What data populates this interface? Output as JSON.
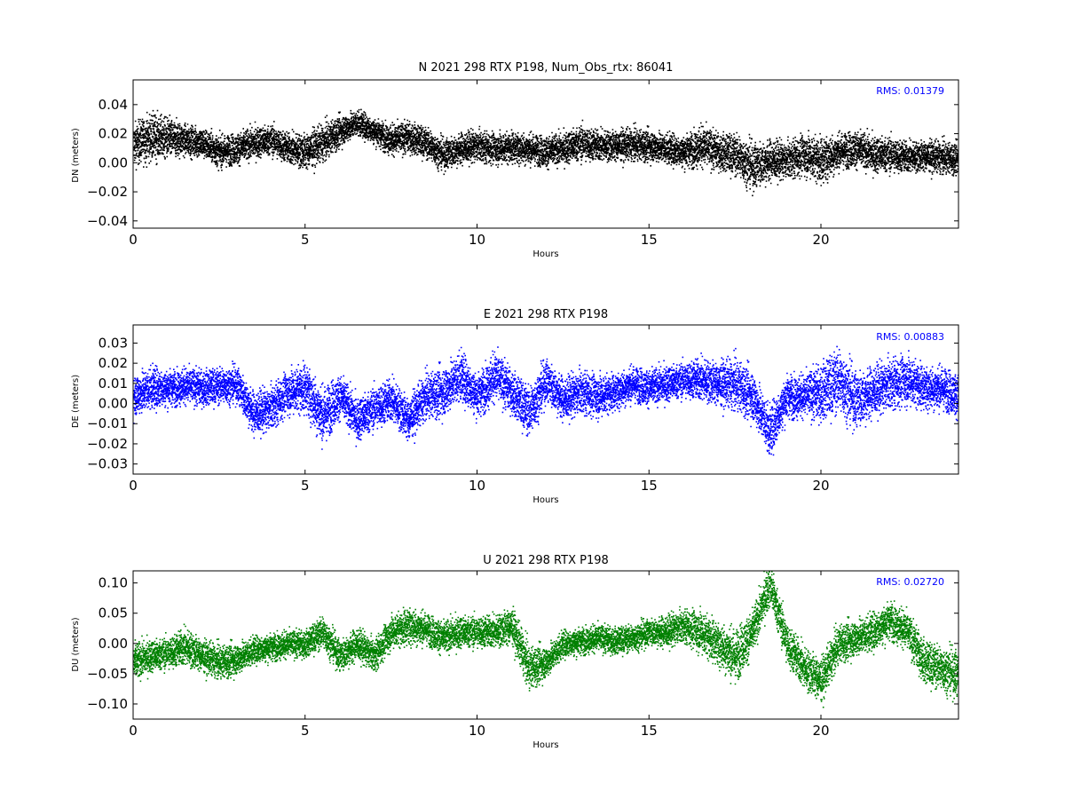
{
  "chart_data": [
    {
      "type": "scatter",
      "title": "N 2021 298 RTX  P198, Num_Obs_rtx: 86041",
      "xlabel": "Hours",
      "ylabel": "DN (meters)",
      "xlim": [
        0,
        24
      ],
      "ylim": [
        -0.045,
        0.057
      ],
      "xticks": [
        0,
        5,
        10,
        15,
        20
      ],
      "xtick_labels": [
        "0",
        "5",
        "10",
        "15",
        "20"
      ],
      "yticks": [
        -0.04,
        -0.02,
        0.0,
        0.02,
        0.04
      ],
      "ytick_labels": [
        "−0.04",
        "−0.02",
        "0.00",
        "0.02",
        "0.04"
      ],
      "annotation": "RMS:  0.01379",
      "color": "#000000",
      "series": [
        {
          "x": [
            0.0,
            0.5,
            1.0,
            1.5,
            2.0,
            2.5,
            3.0,
            3.5,
            4.0,
            4.5,
            5.0,
            5.5,
            6.0,
            6.5,
            7.0,
            7.5,
            8.0,
            8.5,
            9.0,
            9.5,
            10.0,
            10.5,
            11.0,
            11.5,
            12.0,
            12.5,
            13.0,
            13.5,
            14.0,
            14.5,
            15.0,
            15.5,
            16.0,
            16.5,
            17.0,
            17.5,
            18.0,
            18.5,
            19.0,
            19.5,
            20.0,
            20.5,
            21.0,
            21.5,
            22.0,
            22.5,
            23.0,
            23.5,
            24.0
          ],
          "center": [
            0.013,
            0.018,
            0.017,
            0.016,
            0.014,
            0.008,
            0.01,
            0.014,
            0.016,
            0.01,
            0.008,
            0.014,
            0.022,
            0.028,
            0.022,
            0.016,
            0.018,
            0.014,
            0.006,
            0.01,
            0.012,
            0.01,
            0.011,
            0.01,
            0.008,
            0.01,
            0.014,
            0.012,
            0.012,
            0.013,
            0.012,
            0.01,
            0.008,
            0.012,
            0.008,
            0.006,
            -0.002,
            0.002,
            0.002,
            0.006,
            0.002,
            0.008,
            0.01,
            0.006,
            0.006,
            0.004,
            0.005,
            0.004,
            0.003
          ],
          "spread": [
            0.016,
            0.018,
            0.016,
            0.012,
            0.012,
            0.012,
            0.012,
            0.012,
            0.012,
            0.012,
            0.014,
            0.014,
            0.012,
            0.01,
            0.01,
            0.012,
            0.012,
            0.012,
            0.012,
            0.012,
            0.012,
            0.012,
            0.012,
            0.012,
            0.012,
            0.012,
            0.014,
            0.012,
            0.012,
            0.012,
            0.012,
            0.012,
            0.012,
            0.016,
            0.014,
            0.016,
            0.018,
            0.016,
            0.014,
            0.016,
            0.018,
            0.014,
            0.014,
            0.014,
            0.014,
            0.012,
            0.012,
            0.012,
            0.012
          ]
        }
      ]
    },
    {
      "type": "scatter",
      "title": "E 2021 298 RTX  P198",
      "xlabel": "Hours",
      "ylabel": "DE (meters)",
      "xlim": [
        0,
        24
      ],
      "ylim": [
        -0.035,
        0.039
      ],
      "xticks": [
        0,
        5,
        10,
        15,
        20
      ],
      "xtick_labels": [
        "0",
        "5",
        "10",
        "15",
        "20"
      ],
      "yticks": [
        -0.03,
        -0.02,
        -0.01,
        0.0,
        0.01,
        0.02,
        0.03
      ],
      "ytick_labels": [
        "−0.03",
        "−0.02",
        "−0.01",
        "0.00",
        "0.01",
        "0.02",
        "0.03"
      ],
      "annotation": "RMS:  0.00883",
      "color": "#0000ff",
      "series": [
        {
          "x": [
            0.0,
            0.5,
            1.0,
            1.5,
            2.0,
            2.5,
            3.0,
            3.5,
            4.0,
            4.5,
            5.0,
            5.5,
            6.0,
            6.5,
            7.0,
            7.5,
            8.0,
            8.5,
            9.0,
            9.5,
            10.0,
            10.5,
            11.0,
            11.5,
            12.0,
            12.5,
            13.0,
            13.5,
            14.0,
            14.5,
            15.0,
            15.5,
            16.0,
            16.5,
            17.0,
            17.5,
            18.0,
            18.5,
            19.0,
            19.5,
            20.0,
            20.5,
            21.0,
            21.5,
            22.0,
            22.5,
            23.0,
            23.5,
            24.0
          ],
          "center": [
            0.004,
            0.008,
            0.008,
            0.009,
            0.008,
            0.009,
            0.01,
            -0.005,
            -0.002,
            0.006,
            0.008,
            -0.006,
            0.004,
            -0.008,
            -0.002,
            0.002,
            -0.008,
            0.004,
            0.006,
            0.014,
            0.004,
            0.014,
            0.006,
            -0.004,
            0.012,
            0.002,
            0.006,
            0.004,
            0.006,
            0.01,
            0.008,
            0.01,
            0.012,
            0.012,
            0.01,
            0.01,
            0.004,
            -0.014,
            0.004,
            0.004,
            0.006,
            0.012,
            0.002,
            0.006,
            0.01,
            0.012,
            0.008,
            0.008,
            0.004
          ],
          "spread": [
            0.012,
            0.012,
            0.01,
            0.01,
            0.01,
            0.01,
            0.01,
            0.012,
            0.012,
            0.012,
            0.014,
            0.016,
            0.012,
            0.012,
            0.012,
            0.012,
            0.012,
            0.012,
            0.014,
            0.014,
            0.012,
            0.014,
            0.012,
            0.014,
            0.012,
            0.012,
            0.012,
            0.012,
            0.01,
            0.01,
            0.01,
            0.01,
            0.01,
            0.012,
            0.012,
            0.014,
            0.014,
            0.014,
            0.012,
            0.012,
            0.016,
            0.018,
            0.016,
            0.014,
            0.014,
            0.014,
            0.012,
            0.012,
            0.012
          ]
        }
      ]
    },
    {
      "type": "scatter",
      "title": "U 2021 298 RTX  P198",
      "xlabel": "Hours",
      "ylabel": "DU (meters)",
      "xlim": [
        0,
        24
      ],
      "ylim": [
        -0.125,
        0.12
      ],
      "xticks": [
        0,
        5,
        10,
        15,
        20
      ],
      "xtick_labels": [
        "0",
        "5",
        "10",
        "15",
        "20"
      ],
      "yticks": [
        -0.1,
        -0.05,
        0.0,
        0.05,
        0.1
      ],
      "ytick_labels": [
        "−0.10",
        "−0.05",
        "0.00",
        "0.05",
        "0.10"
      ],
      "annotation": "RMS:  0.02720",
      "color": "#008000",
      "series": [
        {
          "x": [
            0.0,
            0.5,
            1.0,
            1.5,
            2.0,
            2.5,
            3.0,
            3.5,
            4.0,
            4.5,
            5.0,
            5.5,
            6.0,
            6.5,
            7.0,
            7.5,
            8.0,
            8.5,
            9.0,
            9.5,
            10.0,
            10.5,
            11.0,
            11.5,
            12.0,
            12.5,
            13.0,
            13.5,
            14.0,
            14.5,
            15.0,
            15.5,
            16.0,
            16.5,
            17.0,
            17.5,
            18.0,
            18.5,
            19.0,
            19.5,
            20.0,
            20.5,
            21.0,
            21.5,
            22.0,
            22.5,
            23.0,
            23.5,
            24.0
          ],
          "center": [
            -0.03,
            -0.02,
            -0.015,
            -0.005,
            -0.02,
            -0.03,
            -0.025,
            -0.01,
            -0.005,
            0.0,
            0.0,
            0.02,
            -0.02,
            0.0,
            -0.02,
            0.02,
            0.03,
            0.025,
            0.01,
            0.02,
            0.02,
            0.02,
            0.03,
            -0.04,
            -0.03,
            0.0,
            0.005,
            0.01,
            0.005,
            0.01,
            0.02,
            0.02,
            0.03,
            0.02,
            0.0,
            -0.02,
            0.02,
            0.1,
            0.0,
            -0.04,
            -0.06,
            0.0,
            0.01,
            0.02,
            0.04,
            0.02,
            -0.03,
            -0.04,
            -0.05
          ],
          "spread": [
            0.035,
            0.03,
            0.03,
            0.035,
            0.03,
            0.03,
            0.03,
            0.025,
            0.025,
            0.025,
            0.025,
            0.03,
            0.03,
            0.03,
            0.03,
            0.03,
            0.035,
            0.03,
            0.03,
            0.03,
            0.03,
            0.03,
            0.035,
            0.04,
            0.03,
            0.025,
            0.025,
            0.025,
            0.025,
            0.025,
            0.025,
            0.03,
            0.03,
            0.04,
            0.04,
            0.05,
            0.04,
            0.04,
            0.04,
            0.04,
            0.04,
            0.035,
            0.035,
            0.035,
            0.035,
            0.035,
            0.04,
            0.04,
            0.045
          ]
        }
      ]
    }
  ]
}
